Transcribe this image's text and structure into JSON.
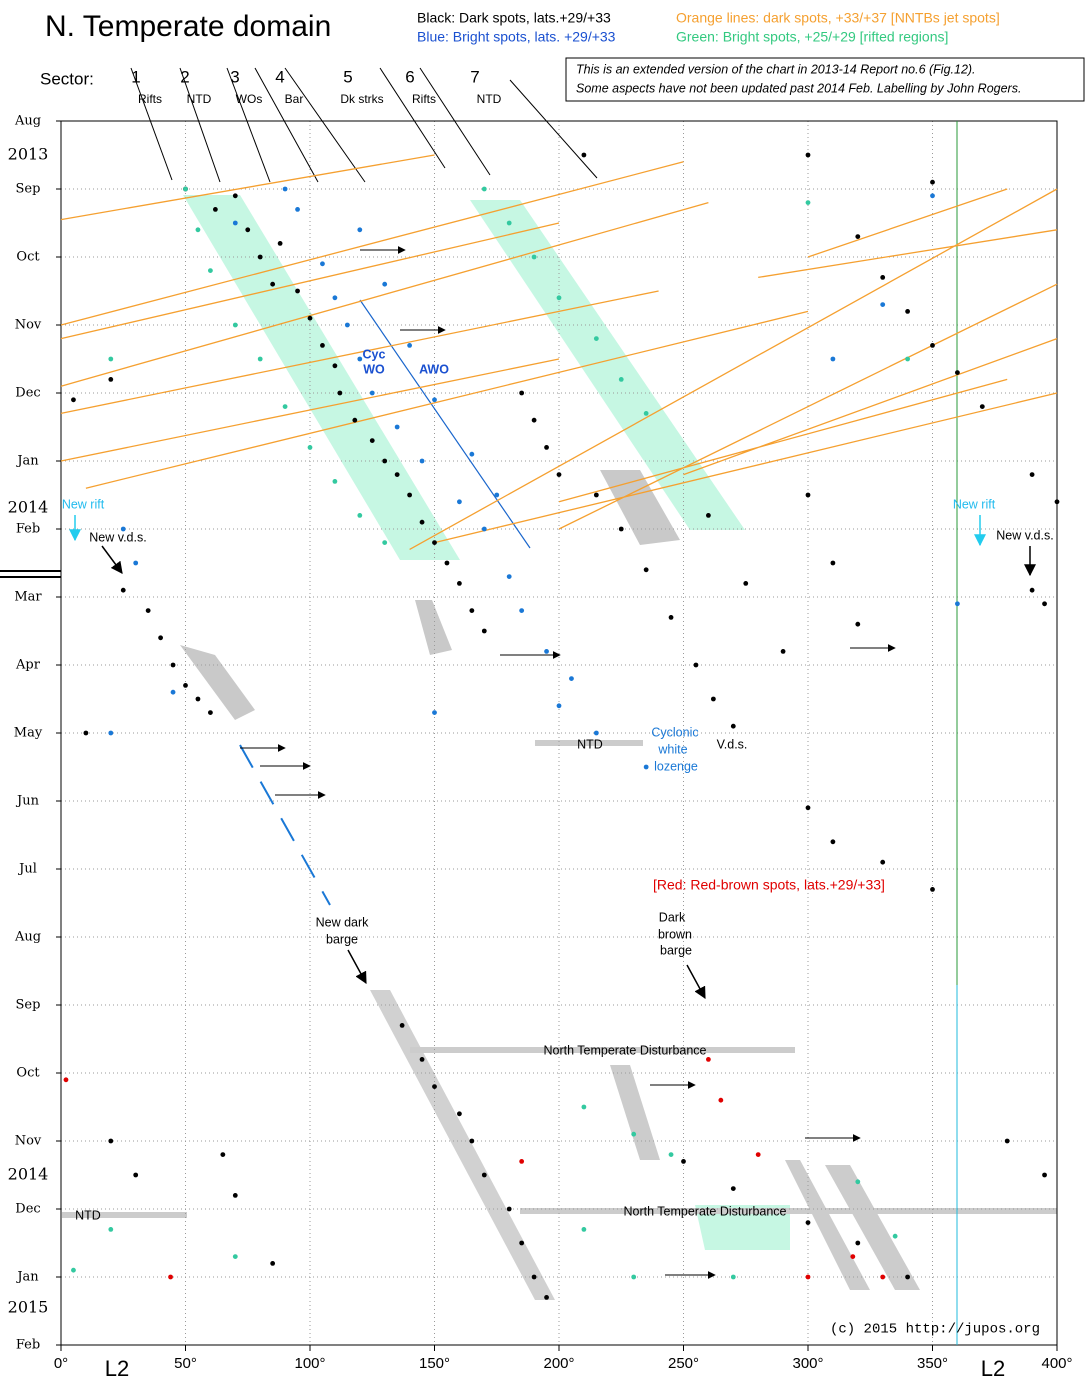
{
  "chart_data": {
    "type": "scatter",
    "title": "N. Temperate domain",
    "note": [
      "This is an extended  version of the chart in 2013-14 Report no.6 (Fig.12).",
      "Some aspects have not been updated past 2014 Feb.  Labelling by John Rogers."
    ],
    "sector_heading": "Sector:",
    "sectors": [
      {
        "number": 1,
        "label": "Rifts"
      },
      {
        "number": 2,
        "label": "NTD"
      },
      {
        "number": 3,
        "label": "WOs"
      },
      {
        "number": 4,
        "label": "Bar"
      },
      {
        "number": 5,
        "label": "Dk strks"
      },
      {
        "number": 6,
        "label": "Rifts"
      },
      {
        "number": 7,
        "label": "NTD"
      }
    ],
    "x_axis_label": "L2",
    "year_labels": [
      "2013",
      "2014",
      "2014",
      "2015"
    ],
    "xlim": [
      0,
      400
    ],
    "xticks": [
      {
        "value": 0,
        "label": "0°"
      },
      {
        "value": 50,
        "label": "50°"
      },
      {
        "value": 100,
        "label": "100°"
      },
      {
        "value": 150,
        "label": "150°"
      },
      {
        "value": 200,
        "label": "200°"
      },
      {
        "value": 250,
        "label": "250°"
      },
      {
        "value": 300,
        "label": "300°"
      },
      {
        "value": 350,
        "label": "350°"
      },
      {
        "value": 400,
        "label": "400°"
      }
    ],
    "ylim": [
      0,
      18
    ],
    "y_inverted": true,
    "yticks": [
      {
        "value": 0,
        "label": "Aug"
      },
      {
        "value": 1,
        "label": "Sep"
      },
      {
        "value": 2,
        "label": "Oct"
      },
      {
        "value": 3,
        "label": "Nov"
      },
      {
        "value": 4,
        "label": "Dec"
      },
      {
        "value": 5,
        "label": "Jan"
      },
      {
        "value": 6,
        "label": "Feb"
      },
      {
        "value": 7,
        "label": "Mar"
      },
      {
        "value": 8,
        "label": "Apr"
      },
      {
        "value": 9,
        "label": "May"
      },
      {
        "value": 10,
        "label": "Jun"
      },
      {
        "value": 11,
        "label": "Jul"
      },
      {
        "value": 12,
        "label": "Aug"
      },
      {
        "value": 13,
        "label": "Sep"
      },
      {
        "value": 14,
        "label": "Oct"
      },
      {
        "value": 15,
        "label": "Nov"
      },
      {
        "value": 16,
        "label": "Dec"
      },
      {
        "value": 17,
        "label": "Jan"
      },
      {
        "value": 18,
        "label": "Feb"
      }
    ],
    "grid": true,
    "series": [
      {
        "name": "Black:  Dark spots, lats.+29/+33",
        "color": "#000000",
        "mode": "markers",
        "x": [
          50,
          62,
          70,
          75,
          80,
          85,
          88,
          95,
          100,
          105,
          110,
          112,
          118,
          125,
          130,
          135,
          140,
          145,
          150,
          155,
          160,
          165,
          170,
          185,
          190,
          195,
          200,
          215,
          225,
          235,
          245,
          255,
          262,
          270,
          260,
          275,
          290,
          300,
          310,
          320,
          320,
          330,
          340,
          350,
          360,
          370,
          390,
          400,
          25,
          35,
          40,
          45,
          50,
          55,
          60,
          390,
          395,
          137,
          145,
          150,
          160,
          165,
          170,
          180,
          185,
          190,
          195,
          20,
          30,
          65,
          70,
          85,
          250,
          270,
          300,
          320,
          340,
          380,
          395,
          210,
          300,
          350,
          5,
          20,
          10,
          300,
          310,
          330,
          350
        ],
        "values": [
          1.0,
          1.3,
          1.1,
          1.6,
          2.0,
          2.4,
          1.8,
          2.5,
          2.9,
          3.3,
          3.6,
          4.0,
          4.4,
          4.7,
          5.0,
          5.2,
          5.5,
          5.9,
          6.2,
          6.5,
          6.8,
          7.2,
          7.5,
          4.0,
          4.4,
          4.8,
          5.2,
          5.5,
          6.0,
          6.6,
          7.3,
          8.0,
          8.5,
          8.9,
          5.8,
          6.8,
          7.8,
          5.5,
          6.5,
          7.4,
          1.7,
          2.3,
          2.8,
          3.3,
          3.7,
          4.2,
          5.2,
          5.6,
          6.9,
          7.2,
          7.6,
          8.0,
          8.3,
          8.5,
          8.7,
          6.9,
          7.1,
          13.3,
          13.8,
          14.2,
          14.6,
          15.0,
          15.5,
          16.0,
          16.5,
          17.0,
          17.3,
          15.0,
          15.5,
          15.2,
          15.8,
          16.8,
          15.3,
          15.7,
          16.2,
          16.5,
          17.0,
          15.0,
          15.5,
          0.5,
          0.5,
          0.9,
          4.1,
          3.8,
          9.0,
          10.1,
          10.6,
          10.9,
          11.3
        ]
      },
      {
        "name": "Blue: Bright spots, lats. +29/+33",
        "color": "#1a78d6",
        "mode": "markers",
        "x": [
          105,
          110,
          115,
          120,
          125,
          135,
          145,
          160,
          170,
          180,
          185,
          195,
          205,
          120,
          130,
          140,
          150,
          165,
          175,
          90,
          95,
          70,
          25,
          30,
          45,
          20,
          150,
          200,
          215,
          235,
          310,
          330,
          350,
          360
        ],
        "values": [
          2.1,
          2.6,
          3.0,
          3.5,
          4.0,
          4.5,
          5.0,
          5.6,
          6.0,
          6.7,
          7.2,
          7.8,
          8.2,
          1.6,
          2.4,
          3.3,
          4.1,
          4.9,
          5.5,
          1.0,
          1.3,
          1.5,
          6.0,
          6.5,
          8.4,
          9.0,
          8.7,
          8.6,
          9.0,
          9.5,
          3.5,
          2.7,
          1.1,
          7.1
        ]
      },
      {
        "name": "Orange lines:  dark spots, +33/+37 [NNTBs jet spots]",
        "color": "#f5a030",
        "mode": "lines",
        "x": [
          0,
          150,
          null,
          0,
          250,
          null,
          0,
          200,
          null,
          0,
          260,
          null,
          0,
          240,
          null,
          0,
          200,
          null,
          10,
          300,
          null,
          140,
          400,
          null,
          200,
          400,
          null,
          250,
          400,
          null,
          200,
          380,
          null,
          150,
          400,
          null,
          300,
          380,
          null,
          280,
          400
        ],
        "values": [
          1.45,
          0.5,
          null,
          3.0,
          0.6,
          null,
          3.2,
          1.5,
          null,
          3.9,
          1.2,
          null,
          4.3,
          2.5,
          null,
          5.0,
          3.5,
          null,
          5.4,
          2.8,
          null,
          6.3,
          1.0,
          null,
          6.0,
          2.4,
          null,
          5.2,
          3.2,
          null,
          5.6,
          3.8,
          null,
          6.2,
          4.0,
          null,
          2.0,
          1.0,
          null,
          2.3,
          1.6
        ]
      },
      {
        "name": "Green:  Bright spots, +25/+29 [rifted regions]",
        "color": "#33c9a0",
        "mode": "markers",
        "x": [
          50,
          55,
          60,
          70,
          80,
          90,
          100,
          110,
          120,
          130,
          170,
          180,
          190,
          200,
          215,
          225,
          235,
          300,
          340,
          20,
          5,
          20,
          70,
          210,
          230,
          245,
          270,
          320,
          335,
          210,
          230
        ],
        "values": [
          1.0,
          1.6,
          2.2,
          3.0,
          3.5,
          4.2,
          4.8,
          5.3,
          5.8,
          6.2,
          1.0,
          1.5,
          2.0,
          2.6,
          3.2,
          3.8,
          4.3,
          1.2,
          3.5,
          3.5,
          16.9,
          16.3,
          16.7,
          14.5,
          14.9,
          15.2,
          17.0,
          15.6,
          16.4,
          16.3,
          17.0
        ]
      },
      {
        "name": "[Red: Red-brown spots, lats.+29/+33]",
        "color": "#e00000",
        "mode": "markers",
        "x": [
          260,
          265,
          280,
          44,
          185,
          300,
          330,
          2,
          318
        ],
        "values": [
          13.8,
          14.4,
          15.2,
          17.0,
          15.3,
          17.0,
          17.0,
          14.1,
          16.7
        ]
      }
    ],
    "annotations": [
      "Cyc",
      "WO",
      "AWO",
      "New rift",
      "New rift",
      "New v.d.s.",
      "New v.d.s.",
      "NTD",
      "Cyclonic",
      "white",
      "lozenge",
      "V.d.s.",
      "New dark",
      "barge",
      "Dark",
      "brown",
      "barge",
      "North Temperate Disturbance",
      "North Temperate Disturbance",
      "NTD",
      "(c) 2015 http://jupos.org"
    ]
  }
}
